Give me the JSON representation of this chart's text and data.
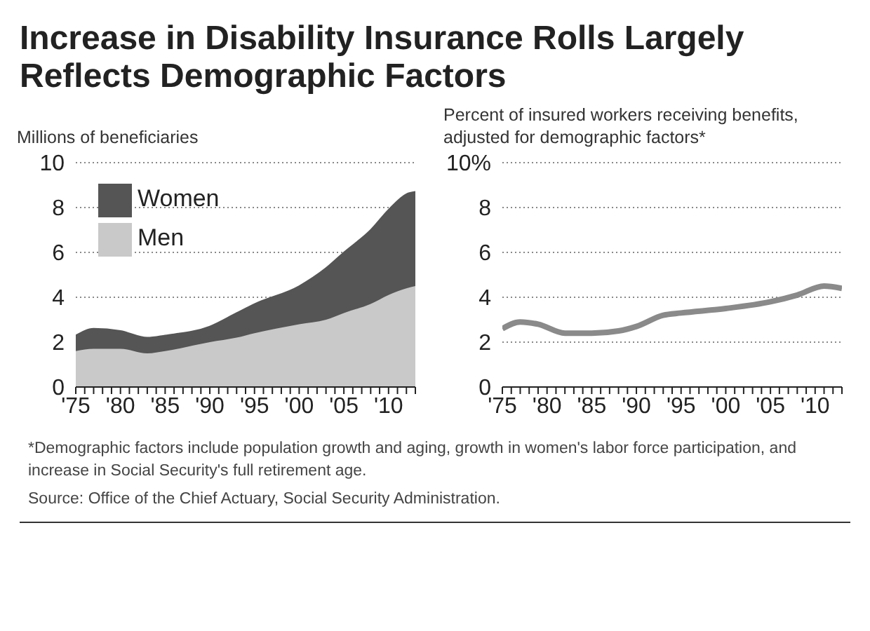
{
  "chart_data": [
    {
      "type": "area",
      "title": "Increase in Disability Insurance Rolls Largely Reflects Demographic Factors",
      "ylabel": "Millions of beneficiaries",
      "stacked": true,
      "grid": "y",
      "legend": "top left",
      "x": [
        1975,
        1977,
        1980,
        1983,
        1985,
        1990,
        1993,
        1995,
        2000,
        2003,
        2005,
        2008,
        2010,
        2012,
        2013
      ],
      "series": [
        {
          "name": "Men",
          "color": "#c9c9c9",
          "values": [
            1.6,
            1.7,
            1.7,
            1.5,
            1.6,
            2.0,
            2.2,
            2.4,
            2.8,
            3.0,
            3.3,
            3.7,
            4.1,
            4.4,
            4.5
          ]
        },
        {
          "name": "Women",
          "color": "#555555",
          "values": [
            0.7,
            0.9,
            0.8,
            0.7,
            0.7,
            0.7,
            1.1,
            1.3,
            1.7,
            2.3,
            2.7,
            3.3,
            3.8,
            4.2,
            4.2
          ]
        }
      ],
      "xlim": [
        1975,
        2013
      ],
      "xticks": [
        {
          "value": 1975,
          "label": "'75"
        },
        {
          "value": 1976,
          "label": null
        },
        {
          "value": 1977,
          "label": null
        },
        {
          "value": 1978,
          "label": null
        },
        {
          "value": 1979,
          "label": null
        },
        {
          "value": 1980,
          "label": "'80"
        },
        {
          "value": 1981,
          "label": null
        },
        {
          "value": 1982,
          "label": null
        },
        {
          "value": 1983,
          "label": null
        },
        {
          "value": 1984,
          "label": null
        },
        {
          "value": 1985,
          "label": "'85"
        },
        {
          "value": 1986,
          "label": null
        },
        {
          "value": 1987,
          "label": null
        },
        {
          "value": 1988,
          "label": null
        },
        {
          "value": 1989,
          "label": null
        },
        {
          "value": 1990,
          "label": "'90"
        },
        {
          "value": 1991,
          "label": null
        },
        {
          "value": 1992,
          "label": null
        },
        {
          "value": 1993,
          "label": null
        },
        {
          "value": 1994,
          "label": null
        },
        {
          "value": 1995,
          "label": "'95"
        },
        {
          "value": 1996,
          "label": null
        },
        {
          "value": 1997,
          "label": null
        },
        {
          "value": 1998,
          "label": null
        },
        {
          "value": 1999,
          "label": null
        },
        {
          "value": 2000,
          "label": "'00"
        },
        {
          "value": 2001,
          "label": null
        },
        {
          "value": 2002,
          "label": null
        },
        {
          "value": 2003,
          "label": null
        },
        {
          "value": 2004,
          "label": null
        },
        {
          "value": 2005,
          "label": "'05"
        },
        {
          "value": 2006,
          "label": null
        },
        {
          "value": 2007,
          "label": null
        },
        {
          "value": 2008,
          "label": null
        },
        {
          "value": 2009,
          "label": null
        },
        {
          "value": 2010,
          "label": "'10"
        },
        {
          "value": 2011,
          "label": null
        },
        {
          "value": 2012,
          "label": null
        },
        {
          "value": 2013,
          "label": null
        }
      ],
      "ylim": [
        0,
        10
      ],
      "yticks": [
        0,
        2,
        4,
        6,
        8,
        10
      ],
      "annotations": [
        "*Demographic factors include population growth and aging, growth in women's labor force participation, and increase in Social Security's full retirement age.",
        "Source: Office of the Chief Actuary, Social Security Administration."
      ]
    },
    {
      "type": "line",
      "ylabel": "Percent of insured workers receiving benefits, adjusted for demographic factors*",
      "grid": "y",
      "x": [
        1975,
        1977,
        1979,
        1982,
        1985,
        1988,
        1990,
        1993,
        1995,
        2000,
        2005,
        2008,
        2011,
        2013
      ],
      "series": [
        {
          "color": "#8a8a8a",
          "values": [
            2.6,
            2.9,
            2.8,
            2.4,
            2.4,
            2.5,
            2.7,
            3.2,
            3.3,
            3.5,
            3.8,
            4.1,
            4.5,
            4.4
          ]
        }
      ],
      "xlim": [
        1975,
        2013
      ],
      "xticks": [
        {
          "value": 1975,
          "label": "'75"
        },
        {
          "value": 1976,
          "label": null
        },
        {
          "value": 1977,
          "label": null
        },
        {
          "value": 1978,
          "label": null
        },
        {
          "value": 1979,
          "label": null
        },
        {
          "value": 1980,
          "label": "'80"
        },
        {
          "value": 1981,
          "label": null
        },
        {
          "value": 1982,
          "label": null
        },
        {
          "value": 1983,
          "label": null
        },
        {
          "value": 1984,
          "label": null
        },
        {
          "value": 1985,
          "label": "'85"
        },
        {
          "value": 1986,
          "label": null
        },
        {
          "value": 1987,
          "label": null
        },
        {
          "value": 1988,
          "label": null
        },
        {
          "value": 1989,
          "label": null
        },
        {
          "value": 1990,
          "label": "'90"
        },
        {
          "value": 1991,
          "label": null
        },
        {
          "value": 1992,
          "label": null
        },
        {
          "value": 1993,
          "label": null
        },
        {
          "value": 1994,
          "label": null
        },
        {
          "value": 1995,
          "label": "'95"
        },
        {
          "value": 1996,
          "label": null
        },
        {
          "value": 1997,
          "label": null
        },
        {
          "value": 1998,
          "label": null
        },
        {
          "value": 1999,
          "label": null
        },
        {
          "value": 2000,
          "label": "'00"
        },
        {
          "value": 2001,
          "label": null
        },
        {
          "value": 2002,
          "label": null
        },
        {
          "value": 2003,
          "label": null
        },
        {
          "value": 2004,
          "label": null
        },
        {
          "value": 2005,
          "label": "'05"
        },
        {
          "value": 2006,
          "label": null
        },
        {
          "value": 2007,
          "label": null
        },
        {
          "value": 2008,
          "label": null
        },
        {
          "value": 2009,
          "label": null
        },
        {
          "value": 2010,
          "label": "'10"
        },
        {
          "value": 2011,
          "label": null
        },
        {
          "value": 2012,
          "label": null
        },
        {
          "value": 2013,
          "label": null
        }
      ],
      "ylim": [
        0,
        10
      ],
      "yticks": [
        0,
        2,
        4,
        6,
        8,
        {
          "value": 10,
          "label": "10%"
        }
      ]
    }
  ]
}
